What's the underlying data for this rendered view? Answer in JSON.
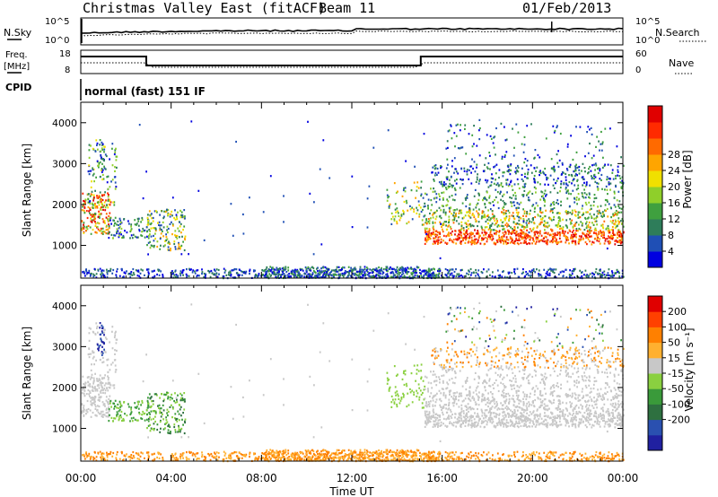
{
  "header": {
    "title": "Christmas Valley East (fitACF)",
    "beam": "Beam 11",
    "date": "01/Feb/2013"
  },
  "noise_panel": {
    "left_label": "N.Sky",
    "right_label": "N.Search",
    "left_ticks": [
      "10^5",
      "10^0"
    ],
    "right_ticks": [
      "10^5",
      "10^0"
    ]
  },
  "freq_panel": {
    "left_label_1": "Freq.",
    "left_label_2": "[MHz]",
    "right_label": "Nave",
    "left_ticks": [
      "18",
      "8"
    ],
    "right_ticks": [
      "60",
      "0"
    ]
  },
  "cpid": {
    "label": "CPID",
    "value": "normal (fast) 151 IF"
  },
  "chart_data": [
    {
      "type": "heatmap",
      "title": "",
      "xlabel": "Time UT",
      "ylabel": "Slant Range [km]",
      "yticks": [
        "1000",
        "2000",
        "3000",
        "4000"
      ],
      "ylim": [
        200,
        4500
      ],
      "xlim": [
        0,
        24
      ],
      "colorbar": {
        "label": "Power [dB]",
        "ticks": [
          "4",
          "8",
          "12",
          "16",
          "20",
          "24",
          "28"
        ],
        "colors": [
          "#0000e0",
          "#1f4fb5",
          "#2e7d5a",
          "#3fa03f",
          "#8fcf2a",
          "#f0e000",
          "#ffa500",
          "#ff6a00",
          "#ff2a00",
          "#e00000"
        ]
      }
    },
    {
      "type": "heatmap",
      "title": "",
      "xlabel": "Time UT",
      "ylabel": "Slant Range [km]",
      "yticks": [
        "1000",
        "2000",
        "3000",
        "4000"
      ],
      "ylim": [
        200,
        4500
      ],
      "xlim": [
        0,
        24
      ],
      "colorbar": {
        "label": "Velocity [m s⁻¹]",
        "ticks": [
          "200",
          "100",
          "50",
          "15",
          "-15",
          "-50",
          "-100",
          "-200"
        ],
        "colors": [
          "#2020a0",
          "#2a50b0",
          "#2e7040",
          "#3a9a3a",
          "#8ad040",
          "#c8c8c8",
          "#ffb030",
          "#ff8000",
          "#ff4000",
          "#e00000"
        ]
      }
    }
  ],
  "time_axis": {
    "ticks": [
      "00:00",
      "04:00",
      "08:00",
      "12:00",
      "16:00",
      "20:00",
      "00:00"
    ],
    "label": "Time UT"
  }
}
